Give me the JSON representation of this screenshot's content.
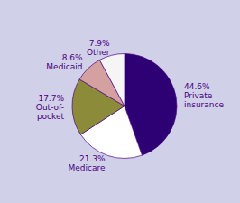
{
  "chart_data": {
    "type": "pie",
    "categories": [
      "Private\ninsurance",
      "Medicare",
      "Out-of-\npocket",
      "Medicaid",
      "Other"
    ],
    "values": [
      44.6,
      21.3,
      17.7,
      8.6,
      7.9
    ],
    "value_labels": [
      "44.6%",
      "21.3%",
      "17.7%",
      "8.6%",
      "7.9%"
    ],
    "colors": [
      "#2d0073",
      "#ffffff",
      "#8b8b3a",
      "#d4a0a0",
      "#f5f5f5"
    ]
  }
}
